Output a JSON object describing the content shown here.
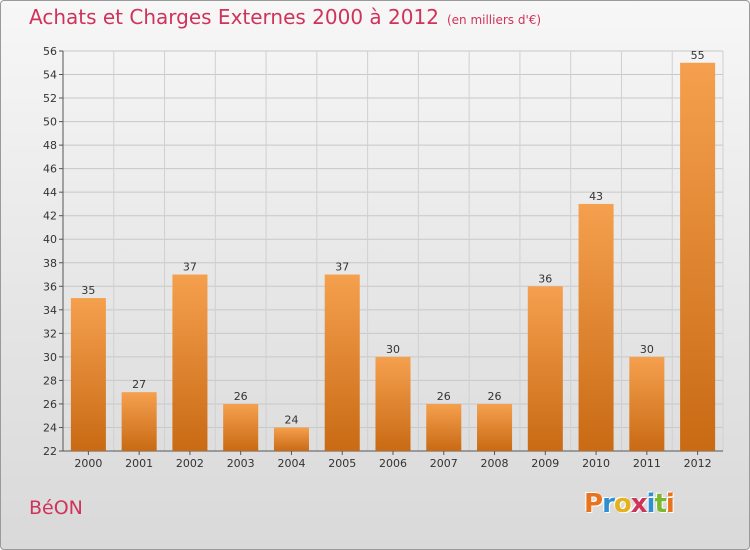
{
  "header": {
    "title": "Achats et Charges Externes 2000 à 2012",
    "subtitle": "(en milliers d'€)"
  },
  "footer": {
    "commune": "BéON",
    "logo_letters": [
      "P",
      "r",
      "o",
      "x",
      "i",
      "t",
      "i"
    ],
    "logo_colors": [
      "#e8731c",
      "#2f8fd0",
      "#e3b21c",
      "#d0335a",
      "#2f8fd0",
      "#7cb82f",
      "#e8731c"
    ]
  },
  "chart_data": {
    "type": "bar",
    "categories": [
      "2000",
      "2001",
      "2002",
      "2003",
      "2004",
      "2005",
      "2006",
      "2007",
      "2008",
      "2009",
      "2010",
      "2011",
      "2012"
    ],
    "values": [
      35,
      27,
      37,
      26,
      24,
      37,
      30,
      26,
      26,
      36,
      43,
      30,
      55
    ],
    "title": "Achats et Charges Externes 2000 à 2012",
    "subtitle": "(en milliers d'€)",
    "ylim": [
      22,
      56
    ],
    "yticks": [
      22,
      24,
      26,
      28,
      30,
      32,
      34,
      36,
      38,
      40,
      42,
      44,
      46,
      48,
      50,
      52,
      54,
      56
    ],
    "grid": true,
    "bar_color_top": "#f5a04e",
    "bar_color_bottom": "#c96a14"
  }
}
